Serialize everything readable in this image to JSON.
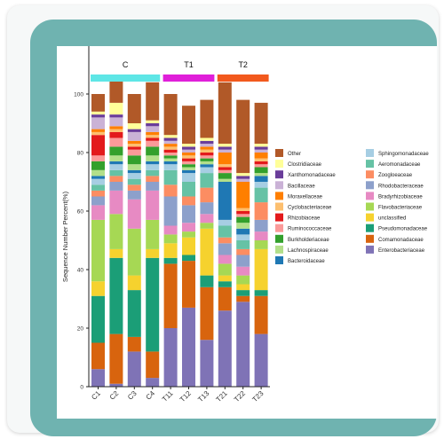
{
  "chart_data": {
    "type": "stacked_bar",
    "ylabel": "Sequence Number Percent(%)",
    "xlabel": "",
    "ylim": [
      0,
      100
    ],
    "yticks": [
      0,
      20,
      40,
      60,
      80,
      100
    ],
    "grid": false,
    "legend_position": "right",
    "groups": [
      {
        "name": "C",
        "color": "#5ee6e6",
        "members": [
          "C1",
          "C2",
          "C3",
          "C4"
        ]
      },
      {
        "name": "T1",
        "color": "#e01fd9",
        "members": [
          "T11",
          "T12",
          "T13"
        ]
      },
      {
        "name": "T2",
        "color": "#f2591d",
        "members": [
          "T21",
          "T22",
          "T23"
        ]
      }
    ],
    "categories": [
      "C1",
      "C2",
      "C3",
      "C4",
      "T11",
      "T12",
      "T13",
      "T21",
      "T22",
      "T23"
    ],
    "series": [
      {
        "name": "Enterobacteriaceae",
        "color": "#7f73b6",
        "values": [
          6,
          1,
          12,
          3,
          20,
          27,
          16,
          26,
          29,
          18
        ]
      },
      {
        "name": "Comamonadaceae",
        "color": "#d8640e",
        "values": [
          9,
          17,
          5,
          9,
          22,
          16,
          18,
          8,
          2,
          13
        ]
      },
      {
        "name": "Pseudomonadaceae",
        "color": "#1b9e77",
        "values": [
          16,
          26,
          16,
          32,
          2,
          2,
          4,
          2,
          2,
          2
        ]
      },
      {
        "name": "unclassified",
        "color": "#f6d22e",
        "values": [
          5,
          3,
          5,
          3,
          5,
          6,
          16,
          2,
          2,
          14
        ]
      },
      {
        "name": "Flavobacteriaceae",
        "color": "#a6d854",
        "values": [
          21,
          12,
          16,
          10,
          3,
          2,
          2,
          4,
          3,
          3
        ]
      },
      {
        "name": "Bradyrhizobiaceae",
        "color": "#e78ac3",
        "values": [
          5,
          8,
          10,
          10,
          3,
          3,
          3,
          3,
          3,
          3
        ]
      },
      {
        "name": "Rhodobacteraceae",
        "color": "#8da0cb",
        "values": [
          3,
          3,
          3,
          3,
          10,
          6,
          4,
          4,
          4,
          4
        ]
      },
      {
        "name": "Zoogloeaceae",
        "color": "#fc8d62",
        "values": [
          2,
          2,
          2,
          2,
          4,
          3,
          5,
          2,
          2,
          6
        ]
      },
      {
        "name": "Aeromonadaceae",
        "color": "#66c2a5",
        "values": [
          2,
          2,
          2,
          2,
          5,
          5,
          5,
          4,
          3,
          5
        ]
      },
      {
        "name": "Sphingomonadaceae",
        "color": "#a6cee3",
        "values": [
          2,
          2,
          2,
          2,
          2,
          3,
          2,
          2,
          2,
          2
        ]
      },
      {
        "name": "Bacteroidaceae",
        "color": "#1f78b4",
        "values": [
          1,
          1,
          1,
          1,
          1,
          1,
          1,
          13,
          2,
          2
        ]
      },
      {
        "name": "Lachnospiraceae",
        "color": "#b2df8a",
        "values": [
          2,
          2,
          2,
          2,
          1,
          1,
          1,
          1,
          2,
          1
        ]
      },
      {
        "name": "Burkholderiaceae",
        "color": "#33a02c",
        "values": [
          3,
          3,
          3,
          3,
          1,
          1,
          1,
          2,
          2,
          2
        ]
      },
      {
        "name": "Ruminococcaceae",
        "color": "#fb9a99",
        "values": [
          2,
          3,
          2,
          2,
          1,
          1,
          1,
          1,
          1,
          1
        ]
      },
      {
        "name": "Rhizobiaceae",
        "color": "#e31a1c",
        "values": [
          7,
          2,
          1,
          1,
          1,
          1,
          1,
          1,
          1,
          1
        ]
      },
      {
        "name": "Cyclobacteriaceae",
        "color": "#fdbf6f",
        "values": [
          1,
          1,
          1,
          1,
          1,
          1,
          1,
          1,
          1,
          1
        ]
      },
      {
        "name": "Moraxellaceae",
        "color": "#ff7f00",
        "values": [
          1,
          1,
          1,
          1,
          1,
          1,
          1,
          4,
          9,
          2
        ]
      },
      {
        "name": "Bacillaceae",
        "color": "#cab2d6",
        "values": [
          4,
          3,
          3,
          2,
          1,
          1,
          1,
          1,
          1,
          1
        ]
      },
      {
        "name": "Xanthomonadaceae",
        "color": "#6a3d9a",
        "values": [
          1,
          1,
          1,
          1,
          1,
          1,
          1,
          1,
          1,
          1
        ]
      },
      {
        "name": "Clostridiaceae",
        "color": "#ffff99",
        "values": [
          1,
          4,
          2,
          1,
          1,
          1,
          1,
          1,
          1,
          1
        ]
      },
      {
        "name": "Other",
        "color": "#b15928",
        "values": [
          6,
          8,
          10,
          13,
          14,
          13,
          13,
          21,
          25,
          14
        ]
      }
    ],
    "legend_columns": [
      [
        "Other",
        "Clostridiaceae",
        "Xanthomonadaceae",
        "Bacillaceae",
        "Moraxellaceae",
        "Cyclobacteriaceae",
        "Rhizobiaceae",
        "Ruminococcaceae",
        "Burkholderiaceae",
        "Lachnospiraceae",
        "Bacteroidaceae"
      ],
      [
        "Sphingomonadaceae",
        "Aeromonadaceae",
        "Zoogloeaceae",
        "Rhodobacteraceae",
        "Bradyrhizobiaceae",
        "Flavobacteriaceae",
        "unclassified",
        "Pseudomonadaceae",
        "Comamonadaceae",
        "Enterobacteriaceae"
      ]
    ]
  }
}
